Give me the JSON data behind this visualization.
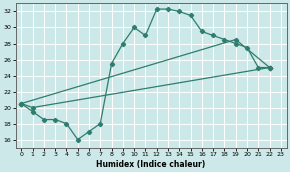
{
  "line1_x": [
    0,
    1,
    2,
    3,
    4,
    5,
    6,
    7,
    8,
    9,
    10,
    11,
    12,
    13,
    14,
    15,
    16,
    17,
    18,
    19,
    20,
    21,
    22
  ],
  "line1_y": [
    20.5,
    19.5,
    18.5,
    18.5,
    18.0,
    16.0,
    17.0,
    18.0,
    25.5,
    28.0,
    30.0,
    29.0,
    32.3,
    32.3,
    32.0,
    31.5,
    29.5,
    29.0,
    28.5,
    28.0,
    27.5,
    25.0,
    25.0
  ],
  "line2_x": [
    0,
    1,
    22
  ],
  "line2_y": [
    20.5,
    20.0,
    25.0
  ],
  "line3_x": [
    0,
    19,
    22
  ],
  "line3_y": [
    20.5,
    28.5,
    25.0
  ],
  "color": "#2e7d6e",
  "bg_color": "#cde8e8",
  "grid_color": "#ffffff",
  "xlabel": "Humidex (Indice chaleur)",
  "ylim": [
    15.0,
    33.0
  ],
  "xlim": [
    -0.5,
    23.5
  ],
  "yticks": [
    16,
    18,
    20,
    22,
    24,
    26,
    28,
    30,
    32
  ],
  "xticks": [
    0,
    1,
    2,
    3,
    4,
    5,
    6,
    7,
    8,
    9,
    10,
    11,
    12,
    13,
    14,
    15,
    16,
    17,
    18,
    19,
    20,
    21,
    22,
    23
  ]
}
